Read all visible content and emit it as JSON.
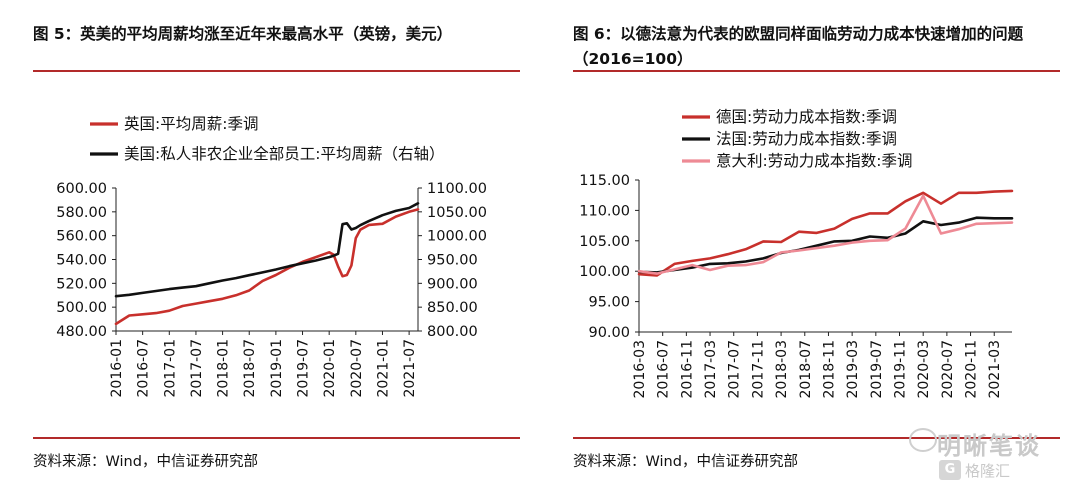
{
  "left": {
    "title": "图 5：英美的平均周薪均涨至近年来最高水平（英镑，美元）",
    "source": "资料来源：Wind，中信证券研究部"
  },
  "right": {
    "title_line1": "图  6：以德法意为代表的欧盟同样面临劳动力成本快速增加的问题",
    "title_line2": "（2016=100）",
    "source": "资料来源：Wind，中信证券研究部"
  },
  "watermark": {
    "text": "明晰笔谈",
    "badge": "G",
    "sub": "格隆汇"
  },
  "colors": {
    "red": "#c8302c",
    "black": "#111111",
    "pink": "#ee8a95",
    "rule": "#b22a2a"
  },
  "chart_data": [
    {
      "type": "line",
      "title": "",
      "x": [
        "2016-01",
        "2016-04",
        "2016-07",
        "2016-10",
        "2017-01",
        "2017-04",
        "2017-07",
        "2017-10",
        "2018-01",
        "2018-04",
        "2018-07",
        "2018-10",
        "2019-01",
        "2019-04",
        "2019-07",
        "2019-10",
        "2020-01",
        "2020-02",
        "2020-03",
        "2020-04",
        "2020-05",
        "2020-06",
        "2020-07",
        "2020-08",
        "2020-10",
        "2021-01",
        "2021-04",
        "2021-07",
        "2021-09"
      ],
      "x_ticks": [
        "2016-01",
        "2016-07",
        "2017-01",
        "2017-07",
        "2018-01",
        "2018-07",
        "2019-01",
        "2019-07",
        "2020-01",
        "2020-07",
        "2021-01",
        "2021-07"
      ],
      "legend_position": "top-left",
      "grid": false,
      "y_left": {
        "ylim": [
          480,
          600
        ],
        "ticks": [
          "480.00",
          "500.00",
          "520.00",
          "540.00",
          "560.00",
          "580.00",
          "600.00"
        ]
      },
      "y_right": {
        "ylim": [
          800,
          1100
        ],
        "ticks": [
          "800.00",
          "850.00",
          "900.00",
          "950.00",
          "1000.00",
          "1050.00",
          "1100.00"
        ]
      },
      "series": [
        {
          "name": "英国:平均周薪:季调",
          "axis": "left",
          "color": "#c8302c",
          "values": [
            486,
            493,
            494,
            495,
            497,
            501,
            503,
            505,
            507,
            510,
            514,
            522,
            527,
            533,
            538,
            542,
            546,
            544,
            534,
            526,
            527,
            535,
            558,
            565,
            569,
            570,
            576,
            580,
            582
          ]
        },
        {
          "name": "美国:私人非农企业全部员工:平均周薪（右轴）",
          "axis": "right",
          "color": "#111111",
          "values": [
            873,
            876,
            880,
            884,
            888,
            891,
            894,
            900,
            906,
            911,
            917,
            923,
            929,
            936,
            942,
            948,
            955,
            958,
            962,
            1024,
            1026,
            1013,
            1016,
            1022,
            1031,
            1043,
            1052,
            1058,
            1068
          ]
        }
      ]
    },
    {
      "type": "line",
      "title": "",
      "x": [
        "2016-03",
        "2016-06",
        "2016-09",
        "2016-12",
        "2017-03",
        "2017-06",
        "2017-09",
        "2017-12",
        "2018-03",
        "2018-06",
        "2018-09",
        "2018-12",
        "2019-03",
        "2019-06",
        "2019-09",
        "2019-12",
        "2020-03",
        "2020-06",
        "2020-09",
        "2020-12",
        "2021-03",
        "2021-06"
      ],
      "x_ticks": [
        "2016-03",
        "2016-07",
        "2016-11",
        "2017-03",
        "2017-07",
        "2017-11",
        "2018-03",
        "2018-07",
        "2018-11",
        "2019-03",
        "2019-07",
        "2019-11",
        "2020-03",
        "2020-07",
        "2020-11",
        "2021-03"
      ],
      "legend_position": "top-left",
      "grid": false,
      "ylim": [
        90,
        115
      ],
      "y_ticks": [
        "90.00",
        "95.00",
        "100.00",
        "105.00",
        "110.00",
        "115.00"
      ],
      "series": [
        {
          "name": "德国:劳动力成本指数:季调",
          "color": "#c8302c",
          "values": [
            99.5,
            99.3,
            101.2,
            101.7,
            102.1,
            102.8,
            103.6,
            104.9,
            104.8,
            106.5,
            106.3,
            107.0,
            108.6,
            109.5,
            109.5,
            111.5,
            112.9,
            111.1,
            112.9,
            112.9,
            113.1,
            113.2
          ]
        },
        {
          "name": "法国:劳动力成本指数:季调",
          "color": "#111111",
          "values": [
            99.9,
            99.8,
            100.2,
            100.6,
            101.2,
            101.3,
            101.6,
            102.1,
            103.0,
            103.5,
            104.2,
            104.9,
            105.0,
            105.7,
            105.5,
            106.2,
            108.2,
            107.6,
            108.0,
            108.8,
            108.7,
            108.7
          ]
        },
        {
          "name": "意大利:劳动力成本指数:季调",
          "color": "#ee8a95",
          "values": [
            100.0,
            99.6,
            100.3,
            101.0,
            100.2,
            100.9,
            101.0,
            101.5,
            103.1,
            103.4,
            103.8,
            104.2,
            104.7,
            105.0,
            105.1,
            107.0,
            112.4,
            106.2,
            106.9,
            107.8,
            107.9,
            108.0
          ]
        }
      ]
    }
  ]
}
